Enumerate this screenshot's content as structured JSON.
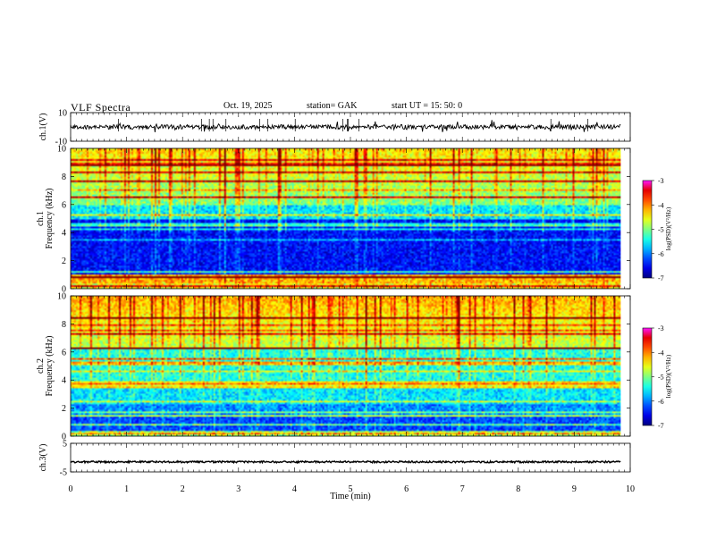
{
  "header": {
    "title": "VLF  Spectra",
    "date": "Oct. 19, 2025",
    "station": "station= GAK",
    "start_ut": "start  UT  =   15: 50: 0"
  },
  "chart_data": [
    {
      "type": "line",
      "name": "ch1-waveform",
      "ylabel": "ch.1(V)",
      "ylim": [
        -10,
        10
      ],
      "yticks": [
        10,
        -10
      ],
      "ytick_labels": [
        "10",
        "-10"
      ],
      "xlim": [
        0,
        10
      ],
      "baseline": 0,
      "color": "#000000"
    },
    {
      "type": "heatmap",
      "name": "ch1-spectrogram",
      "panel_label": "ch.1",
      "ylabel": "Frequency  (kHz)",
      "ylim": [
        0,
        10
      ],
      "yticks": [
        0,
        2,
        4,
        6,
        8,
        10
      ],
      "xlim": [
        0,
        9.83
      ],
      "colorbar": {
        "label": "log(PSD)(V²/Hz)",
        "range": [
          -7,
          -3
        ],
        "ticks": [
          -3,
          -4,
          -5,
          -6,
          -7
        ],
        "tick_labels": [
          "-3",
          "-4",
          "-5",
          "-6",
          "-7"
        ]
      },
      "quiet_band_khz": [
        1.0,
        5.0
      ]
    },
    {
      "type": "heatmap",
      "name": "ch2-spectrogram",
      "panel_label": "ch.2",
      "ylabel": "Frequency  (kHz)",
      "ylim": [
        0,
        10
      ],
      "yticks": [
        0,
        2,
        4,
        6,
        8,
        10
      ],
      "xlim": [
        0,
        9.83
      ],
      "colorbar": {
        "label": "log(PSD)(V²/Hz)",
        "range": [
          -7,
          -3
        ],
        "ticks": [
          -3,
          -4,
          -5,
          -6,
          -7
        ],
        "tick_labels": [
          "-3",
          "-4",
          "-5",
          "-6",
          "-7"
        ]
      },
      "quiet_band_khz": [
        1.0,
        3.5
      ]
    },
    {
      "type": "line",
      "name": "ch3-waveform",
      "ylabel": "ch.3(V)",
      "ylim": [
        -5,
        5
      ],
      "yticks": [
        5,
        -5
      ],
      "ytick_labels": [
        "5",
        "-5"
      ],
      "xlim": [
        0,
        10
      ],
      "baseline": -1.5,
      "color": "#000000"
    }
  ],
  "x_axis": {
    "label": "Time  (min)",
    "range": [
      0,
      10
    ],
    "ticks": [
      0,
      1,
      2,
      3,
      4,
      5,
      6,
      7,
      8,
      9,
      10
    ],
    "tick_labels": [
      "0",
      "1",
      "2",
      "3",
      "4",
      "5",
      "6",
      "7",
      "8",
      "9",
      "10"
    ]
  }
}
